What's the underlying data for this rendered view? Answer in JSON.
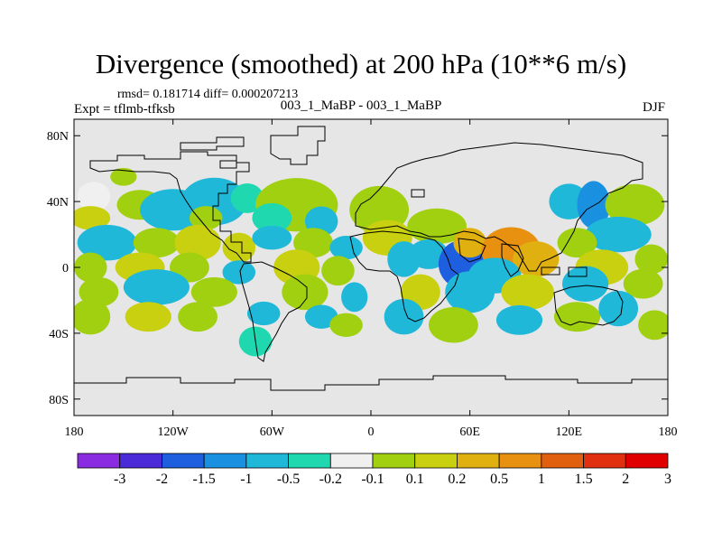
{
  "title": "Divergence (smoothed) at 200 hPa (10**6 m/s)",
  "stats_line": "rmsd= 0.181714 diff= 0.000207213",
  "case_label": "003_1_MaBP - 003_1_MaBP",
  "expt_label": "Expt = tflmb-tfksb",
  "season": "DJF",
  "colors": {
    "no_data": "#e6e6e6",
    "coast": "#000000"
  },
  "map": {
    "lon_range": [
      -180,
      180
    ],
    "lat_range": [
      -90,
      90
    ],
    "x_ticks": [
      {
        "value": -180,
        "label": "180"
      },
      {
        "value": -120,
        "label": "120W"
      },
      {
        "value": -60,
        "label": "60W"
      },
      {
        "value": 0,
        "label": "0"
      },
      {
        "value": 60,
        "label": "60E"
      },
      {
        "value": 120,
        "label": "120E"
      },
      {
        "value": 180,
        "label": "180"
      }
    ],
    "y_ticks": [
      {
        "value": 80,
        "label": "80N"
      },
      {
        "value": 40,
        "label": "40N"
      },
      {
        "value": 0,
        "label": "0"
      },
      {
        "value": -40,
        "label": "40S"
      },
      {
        "value": -80,
        "label": "80S"
      }
    ]
  },
  "colorbar": {
    "colors": [
      "#8a2be2",
      "#4b2ad8",
      "#1e5fe0",
      "#1a90e0",
      "#20b8d8",
      "#20d8b0",
      "#f0f0f0",
      "#a0d010",
      "#c8d010",
      "#e0b010",
      "#e89010",
      "#e06010",
      "#e03010",
      "#e00000"
    ],
    "labels": [
      "-3",
      "-2",
      "-1.5",
      "-1",
      "-0.5",
      "-0.2",
      "-0.1",
      "0.1",
      "0.2",
      "0.5",
      "1",
      "1.5",
      "2",
      "3"
    ]
  },
  "anomalies": [
    {
      "lon": -168,
      "lat": 43,
      "rx": 10,
      "ry": 5,
      "cls": 6
    },
    {
      "lon": -150,
      "lat": 55,
      "rx": 8,
      "ry": 3,
      "cls": 7
    },
    {
      "lon": -170,
      "lat": 30,
      "rx": 12,
      "ry": 4,
      "cls": 8
    },
    {
      "lon": -140,
      "lat": 38,
      "rx": 14,
      "ry": 5,
      "cls": 7
    },
    {
      "lon": -120,
      "lat": 35,
      "rx": 20,
      "ry": 7,
      "cls": 4
    },
    {
      "lon": -95,
      "lat": 40,
      "rx": 20,
      "ry": 8,
      "cls": 4
    },
    {
      "lon": -75,
      "lat": 42,
      "rx": 10,
      "ry": 5,
      "cls": 5
    },
    {
      "lon": -100,
      "lat": 30,
      "rx": 10,
      "ry": 4,
      "cls": 7
    },
    {
      "lon": -45,
      "lat": 38,
      "rx": 25,
      "ry": 9,
      "cls": 7
    },
    {
      "lon": -60,
      "lat": 30,
      "rx": 12,
      "ry": 5,
      "cls": 5
    },
    {
      "lon": -30,
      "lat": 28,
      "rx": 10,
      "ry": 5,
      "cls": 4
    },
    {
      "lon": -160,
      "lat": 15,
      "rx": 18,
      "ry": 6,
      "cls": 4
    },
    {
      "lon": -130,
      "lat": 15,
      "rx": 14,
      "ry": 5,
      "cls": 7
    },
    {
      "lon": -105,
      "lat": 15,
      "rx": 14,
      "ry": 6,
      "cls": 8
    },
    {
      "lon": -80,
      "lat": 12,
      "rx": 10,
      "ry": 5,
      "cls": 8
    },
    {
      "lon": -60,
      "lat": 18,
      "rx": 12,
      "ry": 4,
      "cls": 4
    },
    {
      "lon": -35,
      "lat": 15,
      "rx": 12,
      "ry": 5,
      "cls": 7
    },
    {
      "lon": -15,
      "lat": 12,
      "rx": 10,
      "ry": 4,
      "cls": 4
    },
    {
      "lon": -170,
      "lat": 0,
      "rx": 10,
      "ry": 5,
      "cls": 7
    },
    {
      "lon": -140,
      "lat": 0,
      "rx": 15,
      "ry": 5,
      "cls": 8
    },
    {
      "lon": -110,
      "lat": 0,
      "rx": 12,
      "ry": 5,
      "cls": 7
    },
    {
      "lon": -80,
      "lat": -3,
      "rx": 10,
      "ry": 4,
      "cls": 4
    },
    {
      "lon": -45,
      "lat": 0,
      "rx": 14,
      "ry": 6,
      "cls": 8
    },
    {
      "lon": -20,
      "lat": -2,
      "rx": 10,
      "ry": 5,
      "cls": 7
    },
    {
      "lon": -165,
      "lat": -15,
      "rx": 12,
      "ry": 5,
      "cls": 7
    },
    {
      "lon": -130,
      "lat": -12,
      "rx": 20,
      "ry": 6,
      "cls": 4
    },
    {
      "lon": -95,
      "lat": -15,
      "rx": 14,
      "ry": 5,
      "cls": 7
    },
    {
      "lon": -40,
      "lat": -15,
      "rx": 14,
      "ry": 6,
      "cls": 7
    },
    {
      "lon": -10,
      "lat": -18,
      "rx": 8,
      "ry": 5,
      "cls": 4
    },
    {
      "lon": -170,
      "lat": -30,
      "rx": 12,
      "ry": 6,
      "cls": 7
    },
    {
      "lon": -135,
      "lat": -30,
      "rx": 14,
      "ry": 5,
      "cls": 8
    },
    {
      "lon": -105,
      "lat": -30,
      "rx": 12,
      "ry": 5,
      "cls": 7
    },
    {
      "lon": -65,
      "lat": -28,
      "rx": 10,
      "ry": 4,
      "cls": 4
    },
    {
      "lon": -30,
      "lat": -30,
      "rx": 10,
      "ry": 4,
      "cls": 4
    },
    {
      "lon": -70,
      "lat": -45,
      "rx": 10,
      "ry": 5,
      "cls": 5
    },
    {
      "lon": -15,
      "lat": -35,
      "rx": 10,
      "ry": 4,
      "cls": 7
    },
    {
      "lon": 5,
      "lat": 35,
      "rx": 18,
      "ry": 8,
      "cls": 7
    },
    {
      "lon": 10,
      "lat": 18,
      "rx": 15,
      "ry": 6,
      "cls": 8
    },
    {
      "lon": 20,
      "lat": 5,
      "rx": 10,
      "ry": 6,
      "cls": 4
    },
    {
      "lon": 40,
      "lat": 25,
      "rx": 18,
      "ry": 6,
      "cls": 7
    },
    {
      "lon": 35,
      "lat": 8,
      "rx": 12,
      "ry": 5,
      "cls": 4
    },
    {
      "lon": 55,
      "lat": 2,
      "rx": 14,
      "ry": 8,
      "cls": 2
    },
    {
      "lon": 60,
      "lat": 15,
      "rx": 10,
      "ry": 5,
      "cls": 9
    },
    {
      "lon": 85,
      "lat": 10,
      "rx": 18,
      "ry": 8,
      "cls": 10
    },
    {
      "lon": 100,
      "lat": 5,
      "rx": 14,
      "ry": 6,
      "cls": 9
    },
    {
      "lon": 75,
      "lat": -5,
      "rx": 16,
      "ry": 6,
      "cls": 4
    },
    {
      "lon": 60,
      "lat": -15,
      "rx": 15,
      "ry": 7,
      "cls": 4
    },
    {
      "lon": 95,
      "lat": -15,
      "rx": 16,
      "ry": 6,
      "cls": 8
    },
    {
      "lon": 30,
      "lat": -15,
      "rx": 12,
      "ry": 6,
      "cls": 8
    },
    {
      "lon": 20,
      "lat": -30,
      "rx": 12,
      "ry": 6,
      "cls": 4
    },
    {
      "lon": 50,
      "lat": -35,
      "rx": 15,
      "ry": 6,
      "cls": 7
    },
    {
      "lon": 90,
      "lat": -32,
      "rx": 14,
      "ry": 5,
      "cls": 4
    },
    {
      "lon": 120,
      "lat": 40,
      "rx": 12,
      "ry": 6,
      "cls": 4
    },
    {
      "lon": 135,
      "lat": 38,
      "rx": 10,
      "ry": 8,
      "cls": 3
    },
    {
      "lon": 160,
      "lat": 38,
      "rx": 18,
      "ry": 7,
      "cls": 7
    },
    {
      "lon": 150,
      "lat": 20,
      "rx": 20,
      "ry": 6,
      "cls": 4
    },
    {
      "lon": 125,
      "lat": 15,
      "rx": 12,
      "ry": 5,
      "cls": 7
    },
    {
      "lon": 140,
      "lat": 0,
      "rx": 16,
      "ry": 6,
      "cls": 8
    },
    {
      "lon": 170,
      "lat": 5,
      "rx": 10,
      "ry": 5,
      "cls": 7
    },
    {
      "lon": 130,
      "lat": -10,
      "rx": 14,
      "ry": 6,
      "cls": 4
    },
    {
      "lon": 165,
      "lat": -10,
      "rx": 12,
      "ry": 5,
      "cls": 7
    },
    {
      "lon": 125,
      "lat": -30,
      "rx": 14,
      "ry": 5,
      "cls": 7
    },
    {
      "lon": 150,
      "lat": -25,
      "rx": 12,
      "ry": 6,
      "cls": 4
    },
    {
      "lon": 172,
      "lat": -35,
      "rx": 10,
      "ry": 5,
      "cls": 7
    }
  ]
}
